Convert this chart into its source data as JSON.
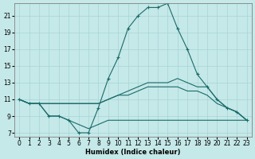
{
  "xlabel": "Humidex (Indice chaleur)",
  "background_color": "#c5e8e8",
  "grid_color": "#a8d4d4",
  "line_color": "#1a6b6b",
  "xlim": [
    -0.5,
    23.5
  ],
  "ylim": [
    6.5,
    22.5
  ],
  "xticks": [
    0,
    1,
    2,
    3,
    4,
    5,
    6,
    7,
    8,
    9,
    10,
    11,
    12,
    13,
    14,
    15,
    16,
    17,
    18,
    19,
    20,
    21,
    22,
    23
  ],
  "yticks": [
    7,
    9,
    11,
    13,
    15,
    17,
    19,
    21
  ],
  "series": [
    {
      "x": [
        0,
        1,
        2,
        3,
        4,
        5,
        6,
        7,
        8,
        9,
        10,
        11,
        12,
        13,
        14,
        15,
        16,
        17,
        18,
        19,
        20,
        21,
        22,
        23
      ],
      "y": [
        11,
        10.5,
        10.5,
        9.0,
        9.0,
        8.5,
        7.0,
        7.0,
        10.0,
        13.5,
        16.0,
        19.5,
        21.0,
        22.0,
        22.0,
        22.5,
        19.5,
        17.0,
        14.0,
        12.5,
        11.0,
        10.0,
        9.5,
        8.5
      ],
      "has_marker": true
    },
    {
      "x": [
        0,
        1,
        2,
        3,
        4,
        5,
        6,
        7,
        8,
        9,
        10,
        11,
        12,
        13,
        14,
        15,
        16,
        17,
        18,
        19,
        20,
        21,
        22,
        23
      ],
      "y": [
        11,
        10.5,
        10.5,
        10.5,
        10.5,
        10.5,
        10.5,
        10.5,
        10.5,
        11.0,
        11.5,
        12.0,
        12.5,
        13.0,
        13.0,
        13.0,
        13.5,
        13.0,
        12.5,
        12.5,
        11.0,
        10.0,
        9.5,
        8.5
      ],
      "has_marker": false
    },
    {
      "x": [
        0,
        1,
        2,
        3,
        4,
        5,
        6,
        7,
        8,
        9,
        10,
        11,
        12,
        13,
        14,
        15,
        16,
        17,
        18,
        19,
        20,
        21,
        22,
        23
      ],
      "y": [
        11,
        10.5,
        10.5,
        10.5,
        10.5,
        10.5,
        10.5,
        10.5,
        10.5,
        11.0,
        11.5,
        11.5,
        12.0,
        12.5,
        12.5,
        12.5,
        12.5,
        12.0,
        12.0,
        11.5,
        10.5,
        10.0,
        9.5,
        8.5
      ],
      "has_marker": false
    },
    {
      "x": [
        0,
        1,
        2,
        3,
        4,
        5,
        6,
        7,
        8,
        9,
        10,
        11,
        12,
        13,
        14,
        15,
        16,
        17,
        18,
        19,
        20,
        21,
        22,
        23
      ],
      "y": [
        11,
        10.5,
        10.5,
        9.0,
        9.0,
        8.5,
        8.0,
        7.5,
        8.0,
        8.5,
        8.5,
        8.5,
        8.5,
        8.5,
        8.5,
        8.5,
        8.5,
        8.5,
        8.5,
        8.5,
        8.5,
        8.5,
        8.5,
        8.5
      ],
      "has_marker": false
    }
  ]
}
